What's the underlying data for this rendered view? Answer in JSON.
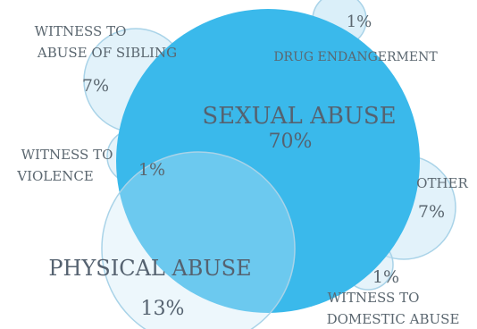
{
  "chart_data": {
    "type": "bubble",
    "title": "",
    "categories": [
      "SEXUAL ABUSE",
      "PHYSICAL ABUSE",
      "WITNESS TO ABUSE OF SIBLING",
      "OTHER",
      "DRUG ENDANGERMENT",
      "WITNESS TO VIOLENCE",
      "WITNESS TO DOMESTIC ABUSE"
    ],
    "values": [
      70,
      13,
      7,
      7,
      1,
      1,
      1
    ],
    "labels": [
      {
        "text": "SEXUAL ABUSE",
        "value_label": "70%"
      },
      {
        "text": "PHYSICAL ABUSE",
        "value_label": "13%"
      },
      {
        "text_lines": [
          "WITNESS TO",
          "ABUSE OF SIBLING"
        ],
        "value_label": "7%"
      },
      {
        "text": "OTHER",
        "value_label": "7%"
      },
      {
        "text": "DRUG ENDANGERMENT",
        "value_label": "1%"
      },
      {
        "text_lines": [
          "WITNESS TO",
          "VIOLENCE"
        ],
        "value_label": "1%"
      },
      {
        "text_lines": [
          "WITNESS TO",
          "DOMESTIC ABUSE"
        ],
        "value_label": "1%"
      }
    ],
    "colors": {
      "primary": "#3ab9eb",
      "secondary": "#cbe8f6",
      "stroke": "#a9d3e8",
      "text": "#5b6770"
    }
  }
}
